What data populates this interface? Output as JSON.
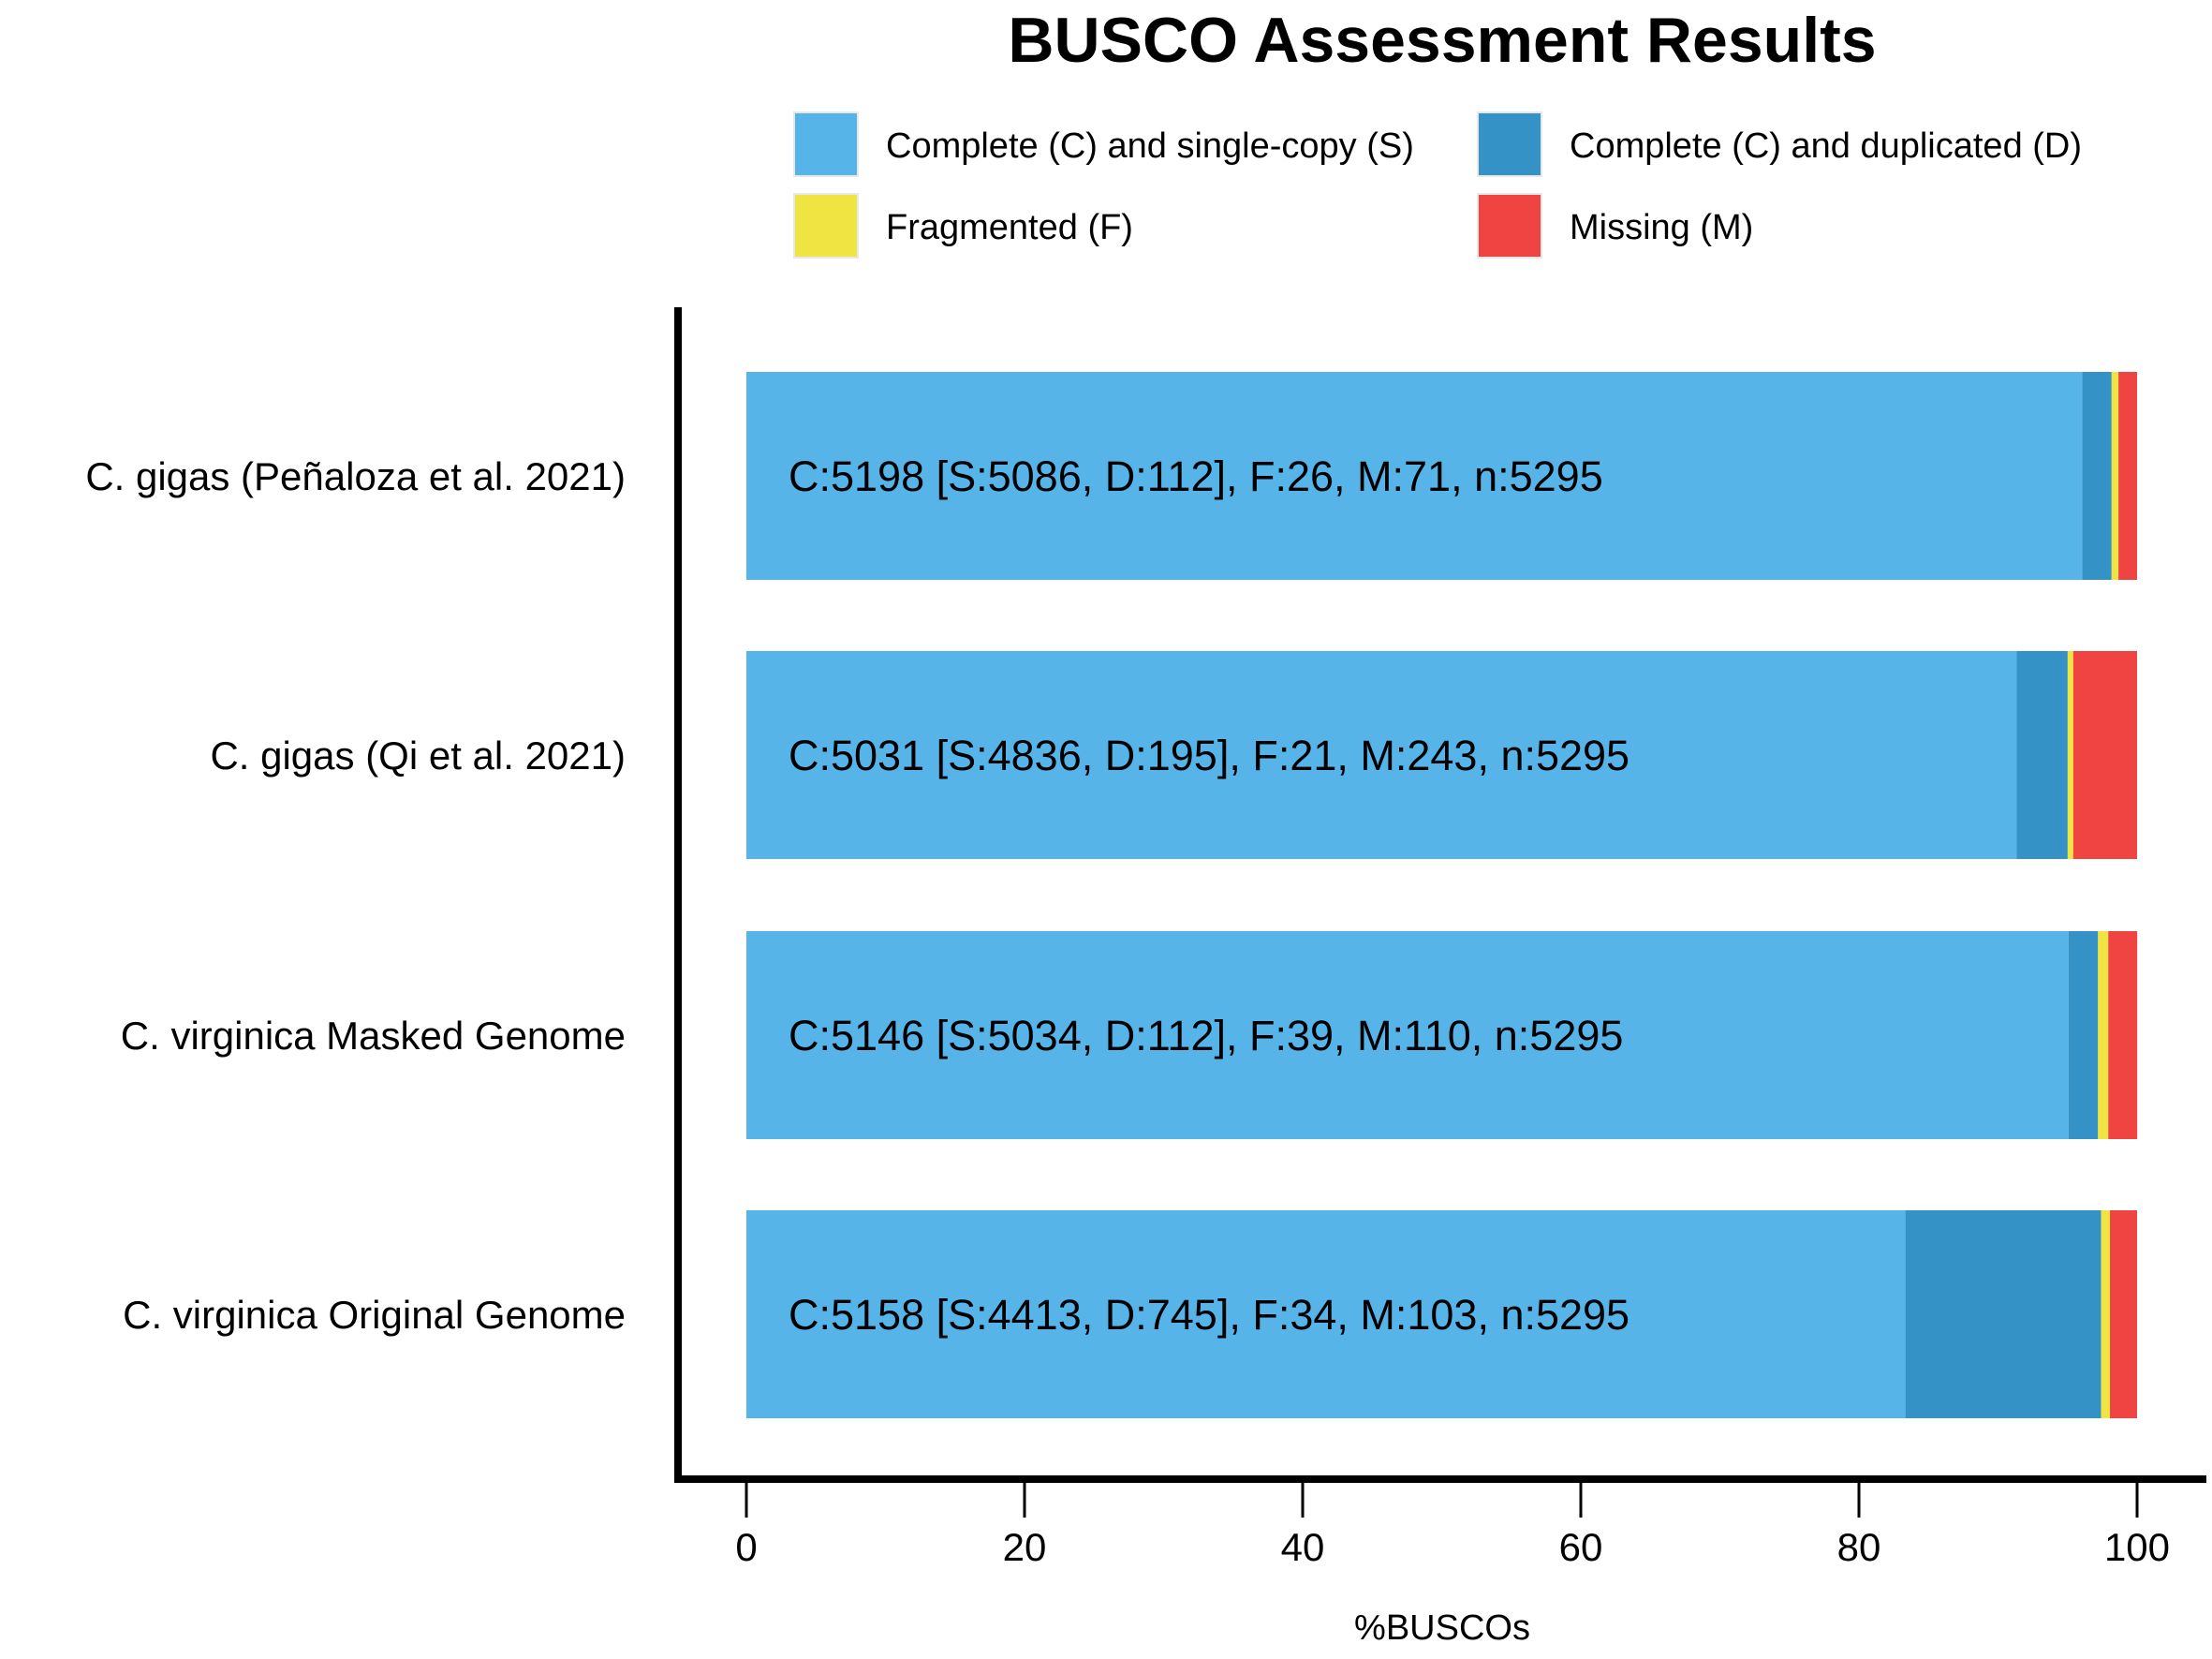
{
  "chart_data": {
    "type": "bar",
    "orientation": "horizontal",
    "stacked": true,
    "title": "BUSCO Assessment Results",
    "xlabel": "%BUSCOs",
    "xlim": [
      0,
      100
    ],
    "xticks": [
      "0",
      "20",
      "40",
      "60",
      "80",
      "100"
    ],
    "grid": false,
    "legend_position": "top",
    "categories": [
      "C. gigas (Peñaloza et al. 2021)",
      "C. gigas (Qi et al. 2021)",
      "C. virginica Masked Genome",
      "C. virginica Original Genome"
    ],
    "series": [
      {
        "name": "Complete (C) and single-copy (S)",
        "color": "#56B4E9",
        "values": [
          96.05,
          91.33,
          95.07,
          83.34
        ]
      },
      {
        "name": "Complete (C) and duplicated (D)",
        "color": "#3492C7",
        "values": [
          2.12,
          3.68,
          2.12,
          14.07
        ]
      },
      {
        "name": "Fragmented (F)",
        "color": "#F0E442",
        "values": [
          0.49,
          0.4,
          0.74,
          0.64
        ]
      },
      {
        "name": "Missing (M)",
        "color": "#F04442",
        "values": [
          1.34,
          4.59,
          2.08,
          1.95
        ]
      }
    ],
    "bar_labels": [
      "C:5198 [S:5086, D:112], F:26, M:71, n:5295",
      "C:5031 [S:4836, D:195], F:21, M:243, n:5295",
      "C:5146 [S:5034, D:112], F:39, M:110, n:5295",
      "C:5158 [S:4413, D:745], F:34, M:103, n:5295"
    ]
  }
}
